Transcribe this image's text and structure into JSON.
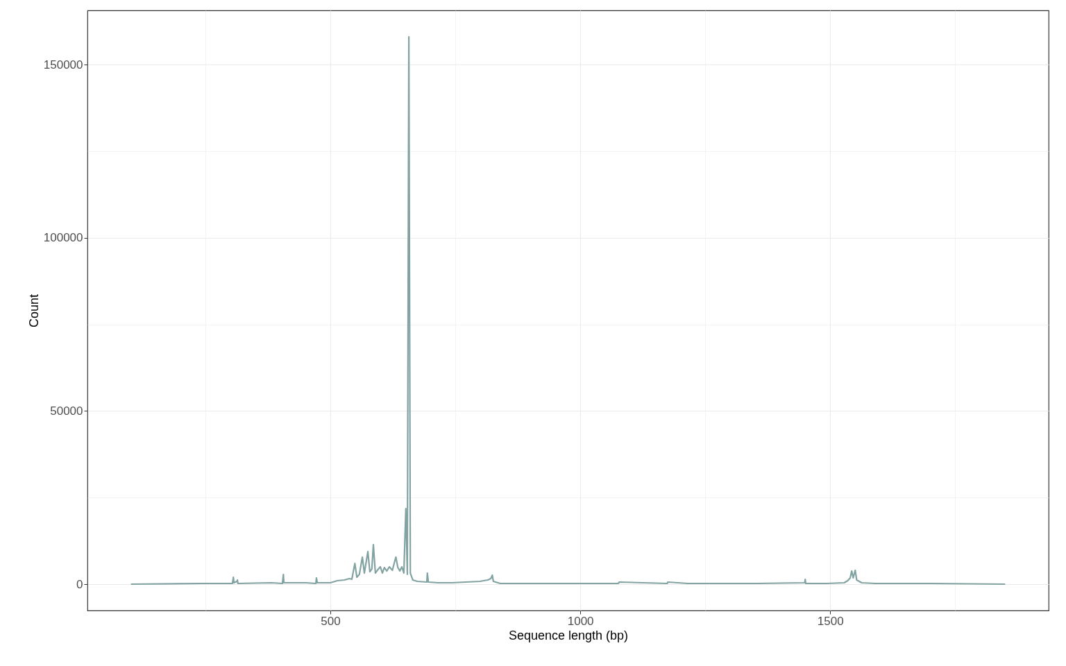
{
  "chart_data": {
    "type": "line",
    "xlabel": "Sequence length (bp)",
    "ylabel": "Count",
    "x": [
      101,
      243,
      304,
      306,
      307,
      313,
      314,
      315,
      382,
      404,
      406,
      407,
      451,
      471,
      472,
      474,
      500,
      514,
      528,
      538,
      543,
      549,
      553,
      558,
      564,
      568,
      575,
      579,
      583,
      586,
      590,
      594,
      600,
      604,
      608,
      613,
      618,
      624,
      631,
      635,
      639,
      643,
      647,
      651,
      654,
      657,
      660,
      665,
      674,
      693,
      694,
      696,
      715,
      743,
      799,
      815,
      821,
      824,
      826,
      840,
      882,
      938,
      1076,
      1078,
      1174,
      1175,
      1215,
      1354,
      1449,
      1450,
      1451,
      1493,
      1528,
      1535,
      1540,
      1543,
      1546,
      1550,
      1553,
      1563,
      1590,
      1701,
      1850
    ],
    "series": [
      {
        "color": "#82a3a2",
        "values": [
          0,
          200,
          200,
          2000,
          400,
          800,
          1200,
          200,
          400,
          200,
          2800,
          400,
          400,
          200,
          1800,
          400,
          400,
          1000,
          1200,
          1600,
          1400,
          6000,
          2000,
          2800,
          7800,
          3200,
          9400,
          3600,
          4400,
          11400,
          3200,
          4000,
          5000,
          3200,
          4800,
          3800,
          5000,
          4000,
          7800,
          4800,
          3800,
          5000,
          3200,
          21800,
          2800,
          158000,
          3200,
          1200,
          800,
          600,
          3200,
          600,
          400,
          400,
          800,
          1200,
          1600,
          2600,
          800,
          200,
          200,
          200,
          200,
          600,
          200,
          600,
          200,
          200,
          400,
          1400,
          200,
          200,
          400,
          1000,
          1800,
          3800,
          1800,
          4000,
          1200,
          400,
          200,
          200,
          0
        ]
      }
    ],
    "xlim": [
      14,
      1937
    ],
    "ylim": [
      -7610,
      165630
    ],
    "xticks": [
      {
        "value": 250,
        "label": null
      },
      500,
      {
        "value": 750,
        "label": null
      },
      1000,
      {
        "value": 1250,
        "label": null
      },
      1500,
      {
        "value": 1750,
        "label": null
      }
    ],
    "yticks": [
      0,
      {
        "value": 25000,
        "label": null
      },
      50000,
      {
        "value": 75000,
        "label": null
      },
      100000,
      {
        "value": 125000,
        "label": null
      },
      150000
    ],
    "grid": true,
    "line_style": "solid",
    "marker": "none"
  }
}
